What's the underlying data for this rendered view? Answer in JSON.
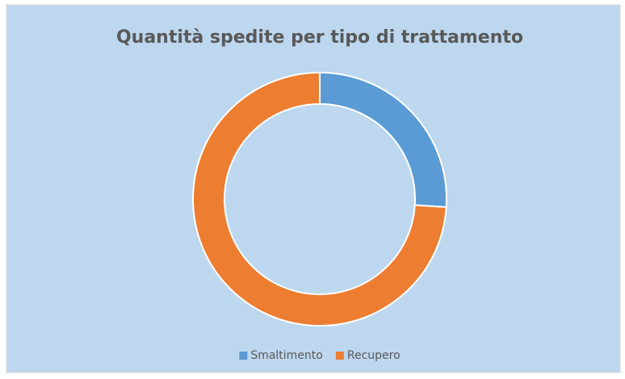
{
  "chart_data": {
    "type": "doughnut",
    "title": "Quantità spedite per tipo di trattamento",
    "categories": [
      "Smaltimento",
      "Recupero"
    ],
    "values": [
      26,
      74
    ],
    "colors": [
      "#5b9bd5",
      "#ed7d31"
    ],
    "legend": "bottom"
  }
}
